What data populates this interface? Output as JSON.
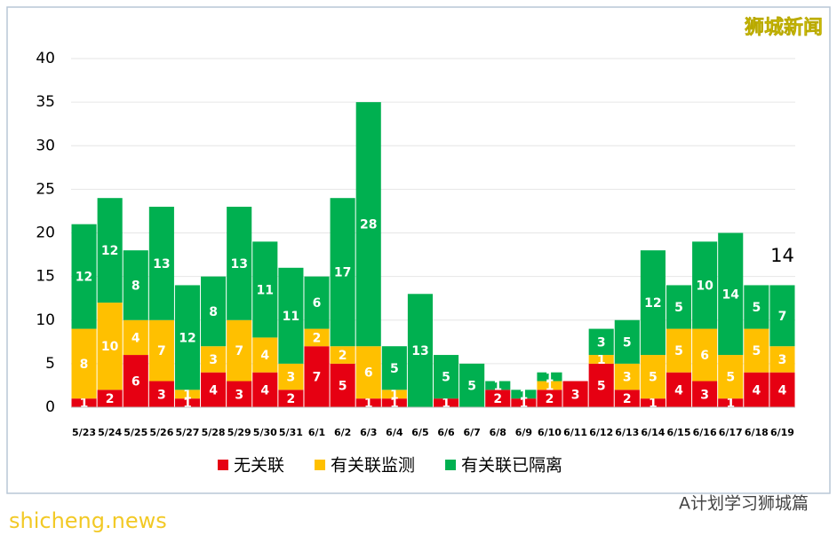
{
  "chart_data": {
    "type": "bar",
    "stacked": true,
    "categories": [
      "5/23",
      "5/24",
      "5/25",
      "5/26",
      "5/27",
      "5/28",
      "5/29",
      "5/30",
      "5/31",
      "6/1",
      "6/2",
      "6/3",
      "6/4",
      "6/5",
      "6/6",
      "6/7",
      "6/8",
      "6/9",
      "6/10",
      "6/11",
      "6/12",
      "6/13",
      "6/14",
      "6/15",
      "6/16",
      "6/17",
      "6/18",
      "6/19"
    ],
    "series": [
      {
        "name": "无关联",
        "color": "#e60012",
        "values": [
          1,
          2,
          6,
          3,
          1,
          4,
          3,
          4,
          2,
          7,
          5,
          1,
          1,
          0,
          1,
          0,
          2,
          1,
          2,
          3,
          5,
          2,
          1,
          4,
          3,
          1,
          4,
          4
        ]
      },
      {
        "name": "有关联监测",
        "color": "#ffc000",
        "values": [
          8,
          10,
          4,
          7,
          1,
          3,
          7,
          4,
          3,
          2,
          2,
          6,
          1,
          0,
          0,
          0,
          0,
          0,
          1,
          0,
          1,
          3,
          5,
          5,
          6,
          5,
          5,
          3
        ]
      },
      {
        "name": "有关联已隔离",
        "color": "#00b050",
        "values": [
          12,
          12,
          8,
          13,
          12,
          8,
          13,
          11,
          11,
          6,
          17,
          28,
          5,
          13,
          5,
          5,
          1,
          1,
          1,
          0,
          3,
          5,
          12,
          5,
          10,
          14,
          5,
          7
        ]
      }
    ],
    "ylim": [
      0,
      40
    ],
    "yticks": [
      0,
      5,
      10,
      15,
      20,
      25,
      30,
      35,
      40
    ],
    "grid": true,
    "annotation": "14"
  },
  "header": {
    "brand": "狮城新闻"
  },
  "watermarks": {
    "site": "shicheng.news",
    "account": "A计划学习狮城篇"
  }
}
